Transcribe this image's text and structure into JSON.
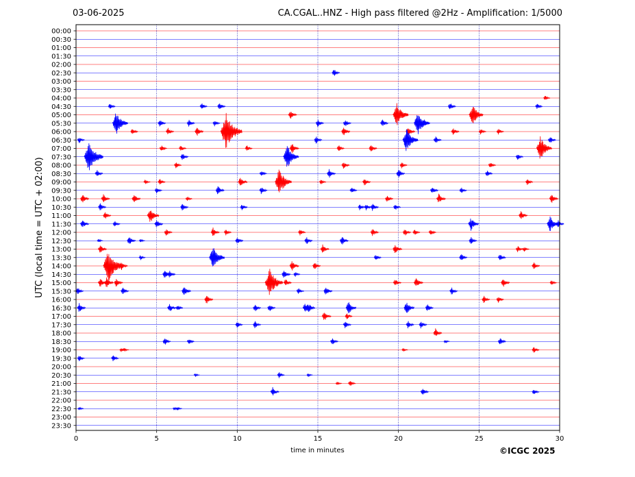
{
  "header": {
    "date": "03-06-2025",
    "title": "CA.CGAL..HNZ - High pass filtered @2Hz - Amplification: 1/5000"
  },
  "footer": {
    "copyright": "©ICGC 2025"
  },
  "colors": {
    "red_trace": "#ff0000",
    "blue_trace": "#0000ff",
    "grid": "#0000aa"
  },
  "chart_data": {
    "type": "line",
    "subtype": "helicorder",
    "xlabel": "time in minutes",
    "ylabel": "UTC (local time = UTC + 02:00)",
    "xlim": [
      0,
      30
    ],
    "x_ticks": [
      0,
      5,
      10,
      15,
      20,
      25,
      30
    ],
    "vertical_gridlines_at": [
      5,
      10,
      15,
      20,
      25
    ],
    "row_colors_alternate": [
      "red",
      "blue"
    ],
    "rows": [
      "00:00",
      "00:30",
      "01:00",
      "01:30",
      "02:00",
      "02:30",
      "03:00",
      "03:30",
      "04:00",
      "04:30",
      "05:00",
      "05:30",
      "06:00",
      "06:30",
      "07:00",
      "07:30",
      "08:00",
      "08:30",
      "09:00",
      "09:30",
      "10:00",
      "10:30",
      "11:00",
      "11:30",
      "12:00",
      "12:30",
      "13:00",
      "13:30",
      "14:00",
      "14:30",
      "15:00",
      "15:30",
      "16:00",
      "16:30",
      "17:00",
      "17:30",
      "18:00",
      "18:30",
      "19:00",
      "19:30",
      "20:00",
      "20:30",
      "21:00",
      "21:30",
      "22:00",
      "22:30",
      "23:00",
      "23:30"
    ],
    "events": [
      {
        "row": "02:30",
        "t": 16.0,
        "amp": 6
      },
      {
        "row": "04:00",
        "t": 29.1,
        "amp": 4
      },
      {
        "row": "04:30",
        "t": 2.1,
        "amp": 5
      },
      {
        "row": "04:30",
        "t": 7.8,
        "amp": 5
      },
      {
        "row": "04:30",
        "t": 8.9,
        "amp": 6
      },
      {
        "row": "04:30",
        "t": 23.2,
        "amp": 6
      },
      {
        "row": "04:30",
        "t": 28.6,
        "amp": 5
      },
      {
        "row": "05:00",
        "t": 13.3,
        "amp": 7
      },
      {
        "row": "05:00",
        "t": 19.9,
        "amp": 18
      },
      {
        "row": "05:00",
        "t": 24.6,
        "amp": 16
      },
      {
        "row": "05:30",
        "t": 2.5,
        "amp": 18
      },
      {
        "row": "05:30",
        "t": 5.2,
        "amp": 6
      },
      {
        "row": "05:30",
        "t": 7.0,
        "amp": 6
      },
      {
        "row": "05:30",
        "t": 8.6,
        "amp": 5
      },
      {
        "row": "05:30",
        "t": 15.0,
        "amp": 6
      },
      {
        "row": "05:30",
        "t": 16.7,
        "amp": 6
      },
      {
        "row": "05:30",
        "t": 19.0,
        "amp": 6
      },
      {
        "row": "05:30",
        "t": 21.2,
        "amp": 18
      },
      {
        "row": "05:30",
        "t": 21.6,
        "amp": 6
      },
      {
        "row": "06:00",
        "t": 3.5,
        "amp": 5
      },
      {
        "row": "06:00",
        "t": 5.7,
        "amp": 6
      },
      {
        "row": "06:00",
        "t": 7.5,
        "amp": 7
      },
      {
        "row": "06:00",
        "t": 9.3,
        "amp": 28
      },
      {
        "row": "06:00",
        "t": 16.6,
        "amp": 7
      },
      {
        "row": "06:00",
        "t": 20.6,
        "amp": 8
      },
      {
        "row": "06:00",
        "t": 23.4,
        "amp": 6
      },
      {
        "row": "06:00",
        "t": 25.1,
        "amp": 5
      },
      {
        "row": "06:00",
        "t": 26.2,
        "amp": 5
      },
      {
        "row": "06:30",
        "t": 0.2,
        "amp": 5
      },
      {
        "row": "06:30",
        "t": 14.9,
        "amp": 6
      },
      {
        "row": "06:30",
        "t": 20.5,
        "amp": 18
      },
      {
        "row": "06:30",
        "t": 22.3,
        "amp": 6
      },
      {
        "row": "06:30",
        "t": 29.4,
        "amp": 6
      },
      {
        "row": "07:00",
        "t": 5.3,
        "amp": 5
      },
      {
        "row": "07:00",
        "t": 6.5,
        "amp": 5
      },
      {
        "row": "07:00",
        "t": 10.6,
        "amp": 5
      },
      {
        "row": "07:00",
        "t": 13.4,
        "amp": 8
      },
      {
        "row": "07:00",
        "t": 16.3,
        "amp": 5
      },
      {
        "row": "07:00",
        "t": 18.3,
        "amp": 6
      },
      {
        "row": "07:00",
        "t": 28.8,
        "amp": 18
      },
      {
        "row": "07:30",
        "t": 0.8,
        "amp": 24
      },
      {
        "row": "07:30",
        "t": 6.6,
        "amp": 6
      },
      {
        "row": "07:30",
        "t": 13.1,
        "amp": 18
      },
      {
        "row": "07:30",
        "t": 27.4,
        "amp": 5
      },
      {
        "row": "08:00",
        "t": 6.2,
        "amp": 5
      },
      {
        "row": "08:00",
        "t": 16.6,
        "amp": 6
      },
      {
        "row": "08:00",
        "t": 20.2,
        "amp": 5
      },
      {
        "row": "08:00",
        "t": 25.7,
        "amp": 5
      },
      {
        "row": "08:30",
        "t": 1.3,
        "amp": 6
      },
      {
        "row": "08:30",
        "t": 11.5,
        "amp": 5
      },
      {
        "row": "08:30",
        "t": 15.7,
        "amp": 7
      },
      {
        "row": "08:30",
        "t": 20.0,
        "amp": 7
      },
      {
        "row": "08:30",
        "t": 25.5,
        "amp": 5
      },
      {
        "row": "09:00",
        "t": 4.3,
        "amp": 4
      },
      {
        "row": "09:00",
        "t": 5.2,
        "amp": 5
      },
      {
        "row": "09:00",
        "t": 10.2,
        "amp": 8
      },
      {
        "row": "09:00",
        "t": 12.6,
        "amp": 20
      },
      {
        "row": "09:00",
        "t": 15.2,
        "amp": 4
      },
      {
        "row": "09:00",
        "t": 17.9,
        "amp": 6
      },
      {
        "row": "09:00",
        "t": 28.0,
        "amp": 5
      },
      {
        "row": "09:30",
        "t": 5.0,
        "amp": 5
      },
      {
        "row": "09:30",
        "t": 8.8,
        "amp": 7
      },
      {
        "row": "09:30",
        "t": 11.5,
        "amp": 6
      },
      {
        "row": "09:30",
        "t": 17.1,
        "amp": 5
      },
      {
        "row": "09:30",
        "t": 22.1,
        "amp": 6
      },
      {
        "row": "09:30",
        "t": 23.9,
        "amp": 5
      },
      {
        "row": "10:00",
        "t": 0.4,
        "amp": 7
      },
      {
        "row": "10:00",
        "t": 1.7,
        "amp": 7
      },
      {
        "row": "10:00",
        "t": 3.6,
        "amp": 7
      },
      {
        "row": "10:00",
        "t": 6.9,
        "amp": 4
      },
      {
        "row": "10:00",
        "t": 19.3,
        "amp": 6
      },
      {
        "row": "10:00",
        "t": 22.5,
        "amp": 8
      },
      {
        "row": "10:00",
        "t": 29.5,
        "amp": 7
      },
      {
        "row": "10:30",
        "t": 1.5,
        "amp": 6
      },
      {
        "row": "10:30",
        "t": 6.6,
        "amp": 6
      },
      {
        "row": "10:30",
        "t": 10.3,
        "amp": 5
      },
      {
        "row": "10:30",
        "t": 17.6,
        "amp": 5
      },
      {
        "row": "10:30",
        "t": 18.0,
        "amp": 5
      },
      {
        "row": "10:30",
        "t": 18.4,
        "amp": 6
      },
      {
        "row": "10:30",
        "t": 19.8,
        "amp": 5
      },
      {
        "row": "11:00",
        "t": 1.8,
        "amp": 6
      },
      {
        "row": "11:00",
        "t": 4.6,
        "amp": 12
      },
      {
        "row": "11:00",
        "t": 27.6,
        "amp": 7
      },
      {
        "row": "11:30",
        "t": 0.4,
        "amp": 7
      },
      {
        "row": "11:30",
        "t": 2.4,
        "amp": 5
      },
      {
        "row": "11:30",
        "t": 5.0,
        "amp": 7
      },
      {
        "row": "11:30",
        "t": 24.5,
        "amp": 10
      },
      {
        "row": "11:30",
        "t": 29.4,
        "amp": 12
      },
      {
        "row": "11:30",
        "t": 29.9,
        "amp": 6
      },
      {
        "row": "12:00",
        "t": 5.6,
        "amp": 6
      },
      {
        "row": "12:00",
        "t": 8.5,
        "amp": 7
      },
      {
        "row": "12:00",
        "t": 9.3,
        "amp": 5
      },
      {
        "row": "12:00",
        "t": 13.9,
        "amp": 5
      },
      {
        "row": "12:00",
        "t": 18.4,
        "amp": 6
      },
      {
        "row": "12:00",
        "t": 20.4,
        "amp": 6
      },
      {
        "row": "12:00",
        "t": 21.0,
        "amp": 5
      },
      {
        "row": "12:00",
        "t": 22.0,
        "amp": 5
      },
      {
        "row": "12:30",
        "t": 1.4,
        "amp": 3
      },
      {
        "row": "12:30",
        "t": 3.3,
        "amp": 7
      },
      {
        "row": "12:30",
        "t": 4.0,
        "amp": 3
      },
      {
        "row": "12:30",
        "t": 10.0,
        "amp": 6
      },
      {
        "row": "12:30",
        "t": 14.3,
        "amp": 6
      },
      {
        "row": "12:30",
        "t": 16.5,
        "amp": 7
      },
      {
        "row": "12:30",
        "t": 24.5,
        "amp": 6
      },
      {
        "row": "13:00",
        "t": 1.5,
        "amp": 7
      },
      {
        "row": "13:00",
        "t": 15.3,
        "amp": 7
      },
      {
        "row": "13:00",
        "t": 19.8,
        "amp": 8
      },
      {
        "row": "13:00",
        "t": 27.4,
        "amp": 5
      },
      {
        "row": "13:00",
        "t": 27.8,
        "amp": 4
      },
      {
        "row": "13:30",
        "t": 4.0,
        "amp": 4
      },
      {
        "row": "13:30",
        "t": 8.5,
        "amp": 18
      },
      {
        "row": "13:30",
        "t": 18.6,
        "amp": 5
      },
      {
        "row": "13:30",
        "t": 23.9,
        "amp": 6
      },
      {
        "row": "13:30",
        "t": 26.3,
        "amp": 6
      },
      {
        "row": "14:00",
        "t": 2.0,
        "amp": 26
      },
      {
        "row": "14:00",
        "t": 2.8,
        "amp": 7
      },
      {
        "row": "14:00",
        "t": 13.4,
        "amp": 8
      },
      {
        "row": "14:00",
        "t": 14.8,
        "amp": 6
      },
      {
        "row": "14:00",
        "t": 28.4,
        "amp": 6
      },
      {
        "row": "14:30",
        "t": 5.5,
        "amp": 7
      },
      {
        "row": "14:30",
        "t": 5.8,
        "amp": 6
      },
      {
        "row": "14:30",
        "t": 12.9,
        "amp": 7
      },
      {
        "row": "14:30",
        "t": 13.6,
        "amp": 4
      },
      {
        "row": "15:00",
        "t": 1.5,
        "amp": 7
      },
      {
        "row": "15:00",
        "t": 1.9,
        "amp": 8
      },
      {
        "row": "15:00",
        "t": 2.5,
        "amp": 7
      },
      {
        "row": "15:00",
        "t": 12.0,
        "amp": 22
      },
      {
        "row": "15:00",
        "t": 13.0,
        "amp": 6
      },
      {
        "row": "15:00",
        "t": 19.8,
        "amp": 6
      },
      {
        "row": "15:00",
        "t": 21.1,
        "amp": 8
      },
      {
        "row": "15:00",
        "t": 26.5,
        "amp": 7
      },
      {
        "row": "15:00",
        "t": 29.5,
        "amp": 4
      },
      {
        "row": "15:30",
        "t": 0.1,
        "amp": 6
      },
      {
        "row": "15:30",
        "t": 2.9,
        "amp": 6
      },
      {
        "row": "15:30",
        "t": 6.7,
        "amp": 8
      },
      {
        "row": "15:30",
        "t": 13.8,
        "amp": 5
      },
      {
        "row": "15:30",
        "t": 15.5,
        "amp": 7
      },
      {
        "row": "15:30",
        "t": 23.3,
        "amp": 6
      },
      {
        "row": "16:00",
        "t": 8.1,
        "amp": 7
      },
      {
        "row": "16:00",
        "t": 25.3,
        "amp": 6
      },
      {
        "row": "16:00",
        "t": 26.2,
        "amp": 5
      },
      {
        "row": "16:30",
        "t": 0.2,
        "amp": 7
      },
      {
        "row": "16:30",
        "t": 5.8,
        "amp": 7
      },
      {
        "row": "16:30",
        "t": 6.3,
        "amp": 5
      },
      {
        "row": "16:30",
        "t": 11.1,
        "amp": 6
      },
      {
        "row": "16:30",
        "t": 12.0,
        "amp": 6
      },
      {
        "row": "16:30",
        "t": 14.2,
        "amp": 7
      },
      {
        "row": "16:30",
        "t": 14.4,
        "amp": 8
      },
      {
        "row": "16:30",
        "t": 16.9,
        "amp": 10
      },
      {
        "row": "16:30",
        "t": 20.5,
        "amp": 10
      },
      {
        "row": "16:30",
        "t": 21.8,
        "amp": 6
      },
      {
        "row": "17:00",
        "t": 15.4,
        "amp": 8
      },
      {
        "row": "17:00",
        "t": 16.8,
        "amp": 5
      },
      {
        "row": "17:30",
        "t": 10.0,
        "amp": 5
      },
      {
        "row": "17:30",
        "t": 11.1,
        "amp": 6
      },
      {
        "row": "17:30",
        "t": 16.7,
        "amp": 6
      },
      {
        "row": "17:30",
        "t": 20.6,
        "amp": 6
      },
      {
        "row": "17:30",
        "t": 21.4,
        "amp": 6
      },
      {
        "row": "18:00",
        "t": 22.3,
        "amp": 7
      },
      {
        "row": "18:30",
        "t": 5.5,
        "amp": 6
      },
      {
        "row": "18:30",
        "t": 7.0,
        "amp": 5
      },
      {
        "row": "18:30",
        "t": 15.9,
        "amp": 6
      },
      {
        "row": "18:30",
        "t": 22.9,
        "amp": 3
      },
      {
        "row": "18:30",
        "t": 26.3,
        "amp": 6
      },
      {
        "row": "19:00",
        "t": 2.8,
        "amp": 4
      },
      {
        "row": "19:00",
        "t": 3.0,
        "amp": 3
      },
      {
        "row": "19:00",
        "t": 20.3,
        "amp": 3
      },
      {
        "row": "19:00",
        "t": 28.4,
        "amp": 5
      },
      {
        "row": "19:30",
        "t": 0.2,
        "amp": 5
      },
      {
        "row": "19:30",
        "t": 2.3,
        "amp": 5
      },
      {
        "row": "20:30",
        "t": 7.4,
        "amp": 3
      },
      {
        "row": "20:30",
        "t": 12.6,
        "amp": 5
      },
      {
        "row": "20:30",
        "t": 14.4,
        "amp": 3
      },
      {
        "row": "21:00",
        "t": 16.2,
        "amp": 3
      },
      {
        "row": "21:00",
        "t": 17.0,
        "amp": 5
      },
      {
        "row": "21:30",
        "t": 12.2,
        "amp": 7
      },
      {
        "row": "21:30",
        "t": 21.5,
        "amp": 6
      },
      {
        "row": "21:30",
        "t": 28.4,
        "amp": 5
      },
      {
        "row": "22:30",
        "t": 0.2,
        "amp": 3
      },
      {
        "row": "22:30",
        "t": 6.1,
        "amp": 3
      },
      {
        "row": "22:30",
        "t": 6.3,
        "amp": 3
      }
    ]
  }
}
